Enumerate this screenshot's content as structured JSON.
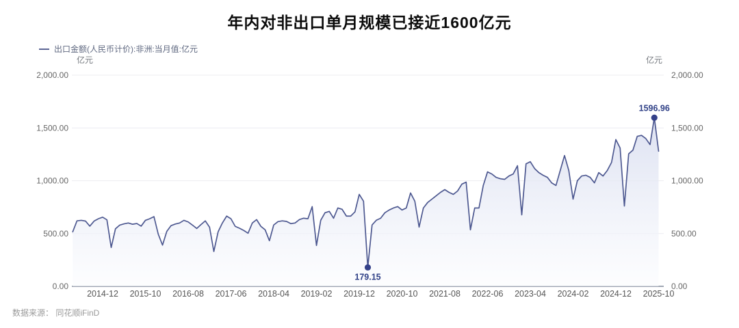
{
  "title": "年内对非出口单月规模已接近1600亿元",
  "legend": {
    "label": "出口金额(人民币计价):非洲:当月值:亿元"
  },
  "unit_left": "亿元",
  "unit_right": "亿元",
  "source": "数据来源： 同花顺iFinD",
  "colors": {
    "title": "#0b0b0b",
    "line": "#4d5890",
    "marker": "#35418a",
    "annotation_text": "#2e3f86",
    "area_top": "#d9def0",
    "area_bottom": "#fbfcfe",
    "grid": "#ececf1",
    "axis_line": "#7f8798",
    "y_tick_text": "#666666",
    "x_tick_text": "#555555",
    "legend_text": "#5f6880",
    "source_text": "#9a9a9a"
  },
  "chart_data": {
    "type": "area",
    "title": "年内对非出口单月规模已接近1600亿元",
    "series_name": "出口金额(人民币计价):非洲:当月值:亿元",
    "unit": "亿元",
    "ylim": [
      0,
      2000
    ],
    "y_ticks": [
      0,
      500,
      1000,
      1500,
      2000
    ],
    "y_tick_labels": [
      "0.00",
      "500.00",
      "1,000.00",
      "1,500.00",
      "2,000.00"
    ],
    "grid": true,
    "legend_position": "top-left",
    "x_tick_labels": [
      "2014-12",
      "2015-10",
      "2016-08",
      "2017-06",
      "2018-04",
      "2019-02",
      "2019-12",
      "2020-10",
      "2021-08",
      "2022-06",
      "2023-04",
      "2024-02",
      "2024-12",
      "2025-10"
    ],
    "x": [
      "2014-05",
      "2014-06",
      "2014-07",
      "2014-08",
      "2014-09",
      "2014-10",
      "2014-11",
      "2014-12",
      "2015-01",
      "2015-02",
      "2015-03",
      "2015-04",
      "2015-05",
      "2015-06",
      "2015-07",
      "2015-08",
      "2015-09",
      "2015-10",
      "2015-11",
      "2015-12",
      "2016-01",
      "2016-02",
      "2016-03",
      "2016-04",
      "2016-05",
      "2016-06",
      "2016-07",
      "2016-08",
      "2016-09",
      "2016-10",
      "2016-11",
      "2016-12",
      "2017-01",
      "2017-02",
      "2017-03",
      "2017-04",
      "2017-05",
      "2017-06",
      "2017-07",
      "2017-08",
      "2017-09",
      "2017-10",
      "2017-11",
      "2017-12",
      "2018-01",
      "2018-02",
      "2018-03",
      "2018-04",
      "2018-05",
      "2018-06",
      "2018-07",
      "2018-08",
      "2018-09",
      "2018-10",
      "2018-11",
      "2018-12",
      "2019-01",
      "2019-02",
      "2019-03",
      "2019-04",
      "2019-05",
      "2019-06",
      "2019-07",
      "2019-08",
      "2019-09",
      "2019-10",
      "2019-11",
      "2019-12",
      "2020-01",
      "2020-02",
      "2020-03",
      "2020-04",
      "2020-05",
      "2020-06",
      "2020-07",
      "2020-08",
      "2020-09",
      "2020-10",
      "2020-11",
      "2020-12",
      "2021-01",
      "2021-02",
      "2021-03",
      "2021-04",
      "2021-05",
      "2021-06",
      "2021-07",
      "2021-08",
      "2021-09",
      "2021-10",
      "2021-11",
      "2021-12",
      "2022-01",
      "2022-02",
      "2022-03",
      "2022-04",
      "2022-05",
      "2022-06",
      "2022-07",
      "2022-08",
      "2022-09",
      "2022-10",
      "2022-11",
      "2022-12",
      "2023-01",
      "2023-02",
      "2023-03",
      "2023-04",
      "2023-05",
      "2023-06",
      "2023-07",
      "2023-08",
      "2023-09",
      "2023-10",
      "2023-11",
      "2023-12",
      "2024-01",
      "2024-02",
      "2024-03",
      "2024-04",
      "2024-05",
      "2024-06",
      "2024-07",
      "2024-08",
      "2024-09",
      "2024-10",
      "2024-11",
      "2024-12",
      "2025-01",
      "2025-02",
      "2025-03",
      "2025-04",
      "2025-05",
      "2025-06",
      "2025-07",
      "2025-08",
      "2025-09",
      "2025-10"
    ],
    "values": [
      516,
      620,
      625,
      618,
      570,
      618,
      640,
      655,
      630,
      368,
      545,
      580,
      592,
      600,
      588,
      595,
      570,
      625,
      640,
      660,
      495,
      390,
      520,
      575,
      590,
      600,
      625,
      610,
      580,
      548,
      585,
      620,
      560,
      330,
      516,
      600,
      665,
      640,
      568,
      550,
      529,
      503,
      600,
      632,
      568,
      535,
      432,
      581,
      613,
      620,
      615,
      594,
      600,
      632,
      645,
      640,
      755,
      387,
      626,
      697,
      710,
      645,
      742,
      729,
      665,
      665,
      705,
      871,
      806,
      179.15,
      581,
      626,
      645,
      697,
      723,
      742,
      755,
      723,
      742,
      884,
      806,
      561,
      742,
      794,
      826,
      858,
      890,
      916,
      890,
      871,
      903,
      968,
      987,
      535,
      742,
      742,
      955,
      1084,
      1064,
      1032,
      1019,
      1013,
      1045,
      1064,
      1142,
      677,
      1160,
      1180,
      1116,
      1077,
      1052,
      1032,
      980,
      955,
      1097,
      1239,
      1097,
      826,
      1000,
      1045,
      1052,
      1032,
      980,
      1077,
      1045,
      1097,
      1174,
      1390,
      1310,
      760,
      1255,
      1290,
      1420,
      1430,
      1400,
      1342,
      1596.96,
      1280
    ],
    "annotations": [
      {
        "x": "2020-02",
        "value": 179.15,
        "label": "179.15",
        "position": "below"
      },
      {
        "x": "2025-09",
        "value": 1596.96,
        "label": "1596.96",
        "position": "above"
      }
    ]
  }
}
